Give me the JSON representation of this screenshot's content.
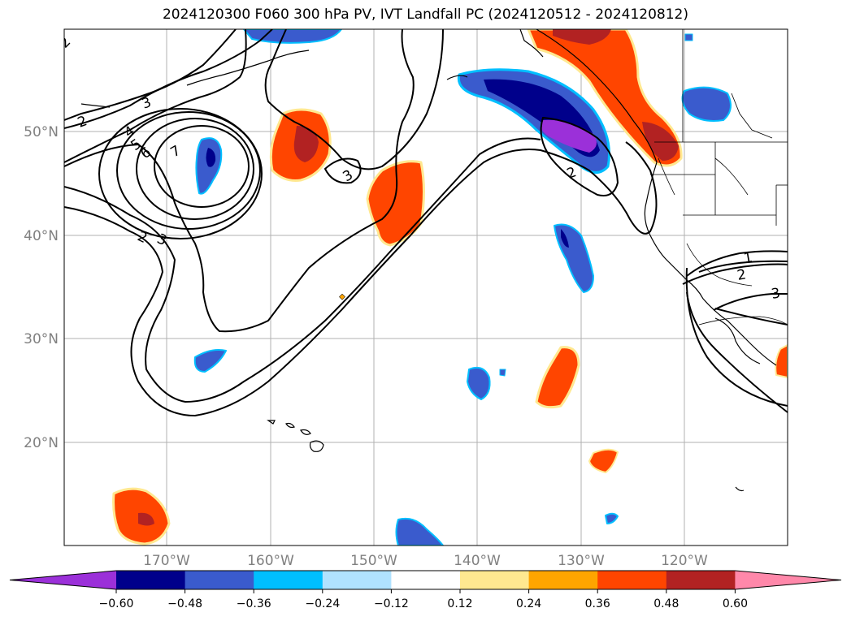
{
  "title": "2024120300 F060 300 hPa PV, IVT Landfall PC (2024120512 - 2024120812)",
  "map": {
    "lat_labels": [
      "50°N",
      "40°N",
      "30°N",
      "20°N"
    ],
    "lon_labels": [
      "170°W",
      "160°W",
      "150°W",
      "140°W",
      "130°W",
      "120°W"
    ],
    "contour_labels": [
      "2",
      "3",
      "4",
      "5",
      "6",
      "7",
      "2",
      "3",
      "3",
      "2",
      "2",
      "1",
      "2",
      "3"
    ]
  },
  "colorbar": {
    "ticks": [
      "−0.60",
      "−0.48",
      "−0.36",
      "−0.24",
      "−0.12",
      "0.12",
      "0.24",
      "0.36",
      "0.48",
      "0.60"
    ],
    "colors": [
      "#9b30d9",
      "#00008b",
      "#3a5bcd",
      "#00bfff",
      "#b0e2ff",
      "#ffffff",
      "#ffe890",
      "#ffa500",
      "#ff4500",
      "#b22222",
      "#ff88aa"
    ]
  }
}
